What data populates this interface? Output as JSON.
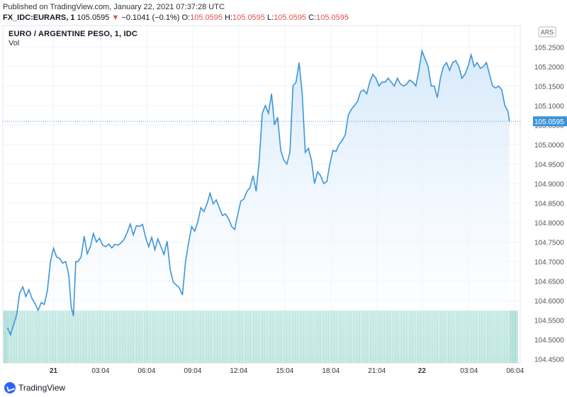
{
  "header": {
    "published": "Published on TradingView.com, January 22, 2021 07:37:28 UTC",
    "symbol": "FX_IDC:EURARS, 1",
    "last": "105.0595",
    "change": "−0.1041 (−0.1%)",
    "open_label": "O:",
    "open": "105.0595",
    "high_label": "H:",
    "high": "105.0595",
    "low_label": "L:",
    "low": "105.0595",
    "close_label": "C:",
    "close": "105.0595"
  },
  "footer": {
    "brand": "TradingView"
  },
  "colors": {
    "line": "#3d95d9",
    "area": "#d6e9fb",
    "volume": "#8ed3c8",
    "price_tag": "#3d95d9"
  },
  "chart_data": {
    "type": "area",
    "title": "EURO / ARGENTINE PESO, 1, IDC",
    "volume_label": "Vol",
    "currency": "ARS",
    "last_price": 105.0595,
    "last_price_label": "105.0595",
    "ylim": [
      104.44,
      105.305
    ],
    "y_ticks": [
      104.45,
      104.5,
      104.55,
      104.6,
      104.65,
      104.7,
      104.75,
      104.8,
      104.85,
      104.9,
      104.95,
      105.0,
      105.05,
      105.1,
      105.15,
      105.2,
      105.25
    ],
    "y_tick_labels": [
      "104.4500",
      "104.5000",
      "104.5500",
      "104.6000",
      "104.6500",
      "104.7000",
      "104.7500",
      "104.8000",
      "104.8500",
      "104.9000",
      "104.9500",
      "105.0000",
      "105.0500",
      "105.1000",
      "105.1500",
      "105.2000",
      "105.2500"
    ],
    "x_range_hours": [
      -3.3,
      30.4
    ],
    "x_ticks": [
      {
        "hour": 0,
        "label": "21",
        "bold": true
      },
      {
        "hour": 3.0667,
        "label": "03:04"
      },
      {
        "hour": 6.0667,
        "label": "06:04"
      },
      {
        "hour": 9.0667,
        "label": "09:04"
      },
      {
        "hour": 12.0667,
        "label": "12:04"
      },
      {
        "hour": 15.0667,
        "label": "15:04"
      },
      {
        "hour": 18.0667,
        "label": "18:04"
      },
      {
        "hour": 21.0667,
        "label": "21:04"
      },
      {
        "hour": 24,
        "label": "22",
        "bold": true
      },
      {
        "hour": 27.0667,
        "label": "03:04"
      },
      {
        "hour": 30.0667,
        "label": "06:04"
      }
    ],
    "volume_level": 0.155,
    "series": [
      {
        "points": [
          [
            -3.0,
            104.53
          ],
          [
            -2.8,
            104.512
          ],
          [
            -2.6,
            104.538
          ],
          [
            -2.4,
            104.563
          ],
          [
            -2.2,
            104.62
          ],
          [
            -2.0,
            104.635
          ],
          [
            -1.8,
            104.61
          ],
          [
            -1.6,
            104.628
          ],
          [
            -1.4,
            104.605
          ],
          [
            -1.2,
            104.592
          ],
          [
            -1.0,
            104.575
          ],
          [
            -0.8,
            104.595
          ],
          [
            -0.6,
            104.59
          ],
          [
            -0.4,
            104.625
          ],
          [
            -0.2,
            104.7
          ],
          [
            0.0,
            104.734
          ],
          [
            0.2,
            104.712
          ],
          [
            0.4,
            104.708
          ],
          [
            0.6,
            104.696
          ],
          [
            0.8,
            104.7
          ],
          [
            1.0,
            104.664
          ],
          [
            1.15,
            104.584
          ],
          [
            1.3,
            104.56
          ],
          [
            1.45,
            104.7
          ],
          [
            1.6,
            104.7
          ],
          [
            1.8,
            104.712
          ],
          [
            2.0,
            104.765
          ],
          [
            2.2,
            104.72
          ],
          [
            2.4,
            104.738
          ],
          [
            2.6,
            104.772
          ],
          [
            2.8,
            104.75
          ],
          [
            3.0,
            104.76
          ],
          [
            3.2,
            104.742
          ],
          [
            3.4,
            104.738
          ],
          [
            3.6,
            104.745
          ],
          [
            3.8,
            104.735
          ],
          [
            4.0,
            104.744
          ],
          [
            4.2,
            104.742
          ],
          [
            4.4,
            104.748
          ],
          [
            4.6,
            104.757
          ],
          [
            4.8,
            104.775
          ],
          [
            5.0,
            104.796
          ],
          [
            5.2,
            104.768
          ],
          [
            5.4,
            104.792
          ],
          [
            5.6,
            104.79
          ],
          [
            5.8,
            104.795
          ],
          [
            6.0,
            104.762
          ],
          [
            6.2,
            104.738
          ],
          [
            6.4,
            104.762
          ],
          [
            6.6,
            104.73
          ],
          [
            6.8,
            104.758
          ],
          [
            7.0,
            104.738
          ],
          [
            7.2,
            104.718
          ],
          [
            7.4,
            104.752
          ],
          [
            7.6,
            104.68
          ],
          [
            7.8,
            104.647
          ],
          [
            8.0,
            104.64
          ],
          [
            8.2,
            104.632
          ],
          [
            8.4,
            104.614
          ],
          [
            8.6,
            104.7
          ],
          [
            8.8,
            104.748
          ],
          [
            9.0,
            104.79
          ],
          [
            9.2,
            104.778
          ],
          [
            9.4,
            104.802
          ],
          [
            9.6,
            104.838
          ],
          [
            9.8,
            104.828
          ],
          [
            10.0,
            104.848
          ],
          [
            10.2,
            104.875
          ],
          [
            10.4,
            104.848
          ],
          [
            10.6,
            104.858
          ],
          [
            10.8,
            104.838
          ],
          [
            11.0,
            104.818
          ],
          [
            11.2,
            104.822
          ],
          [
            11.4,
            104.81
          ],
          [
            11.6,
            104.79
          ],
          [
            11.8,
            104.782
          ],
          [
            12.0,
            104.82
          ],
          [
            12.2,
            104.855
          ],
          [
            12.4,
            104.86
          ],
          [
            12.6,
            104.88
          ],
          [
            12.8,
            104.89
          ],
          [
            13.0,
            104.92
          ],
          [
            13.2,
            104.88
          ],
          [
            13.4,
            104.96
          ],
          [
            13.6,
            105.08
          ],
          [
            13.8,
            105.1
          ],
          [
            14.0,
            105.08
          ],
          [
            14.2,
            105.13
          ],
          [
            14.4,
            105.05
          ],
          [
            14.6,
            105.07
          ],
          [
            14.8,
            104.985
          ],
          [
            15.0,
            104.96
          ],
          [
            15.2,
            104.95
          ],
          [
            15.4,
            104.98
          ],
          [
            15.6,
            105.15
          ],
          [
            15.8,
            105.16
          ],
          [
            16.0,
            105.21
          ],
          [
            16.2,
            105.13
          ],
          [
            16.4,
            104.98
          ],
          [
            16.6,
            104.99
          ],
          [
            16.8,
            104.96
          ],
          [
            17.0,
            104.9
          ],
          [
            17.2,
            104.93
          ],
          [
            17.4,
            104.92
          ],
          [
            17.6,
            104.9
          ],
          [
            17.8,
            104.905
          ],
          [
            18.0,
            104.95
          ],
          [
            18.2,
            104.985
          ],
          [
            18.4,
            104.982
          ],
          [
            18.6,
            105.0
          ],
          [
            18.8,
            105.01
          ],
          [
            19.0,
            105.025
          ],
          [
            19.2,
            105.075
          ],
          [
            19.4,
            105.09
          ],
          [
            19.6,
            105.1
          ],
          [
            19.8,
            105.11
          ],
          [
            20.0,
            105.135
          ],
          [
            20.2,
            105.14
          ],
          [
            20.4,
            105.13
          ],
          [
            20.6,
            105.16
          ],
          [
            20.8,
            105.18
          ],
          [
            21.0,
            105.17
          ],
          [
            21.2,
            105.15
          ],
          [
            21.4,
            105.16
          ],
          [
            21.6,
            105.16
          ],
          [
            21.8,
            105.17
          ],
          [
            22.0,
            105.16
          ],
          [
            22.2,
            105.15
          ],
          [
            22.4,
            105.17
          ],
          [
            22.6,
            105.155
          ],
          [
            22.8,
            105.15
          ],
          [
            23.0,
            105.155
          ],
          [
            23.2,
            105.165
          ],
          [
            23.4,
            105.16
          ],
          [
            23.6,
            105.15
          ],
          [
            23.8,
            105.19
          ],
          [
            24.0,
            105.24
          ],
          [
            24.2,
            105.22
          ],
          [
            24.4,
            105.2
          ],
          [
            24.6,
            105.15
          ],
          [
            24.8,
            105.15
          ],
          [
            25.0,
            105.12
          ],
          [
            25.2,
            105.17
          ],
          [
            25.4,
            105.2
          ],
          [
            25.6,
            105.21
          ],
          [
            25.8,
            105.19
          ],
          [
            26.0,
            105.21
          ],
          [
            26.2,
            105.215
          ],
          [
            26.4,
            105.2
          ],
          [
            26.6,
            105.17
          ],
          [
            26.8,
            105.18
          ],
          [
            27.0,
            105.2
          ],
          [
            27.2,
            105.23
          ],
          [
            27.4,
            105.2
          ],
          [
            27.6,
            105.21
          ],
          [
            27.8,
            105.195
          ],
          [
            28.0,
            105.2
          ],
          [
            28.2,
            105.21
          ],
          [
            28.4,
            105.18
          ],
          [
            28.6,
            105.15
          ],
          [
            28.8,
            105.145
          ],
          [
            29.0,
            105.15
          ],
          [
            29.2,
            105.14
          ],
          [
            29.4,
            105.1
          ],
          [
            29.6,
            105.085
          ],
          [
            29.7,
            105.0595
          ]
        ]
      }
    ]
  }
}
